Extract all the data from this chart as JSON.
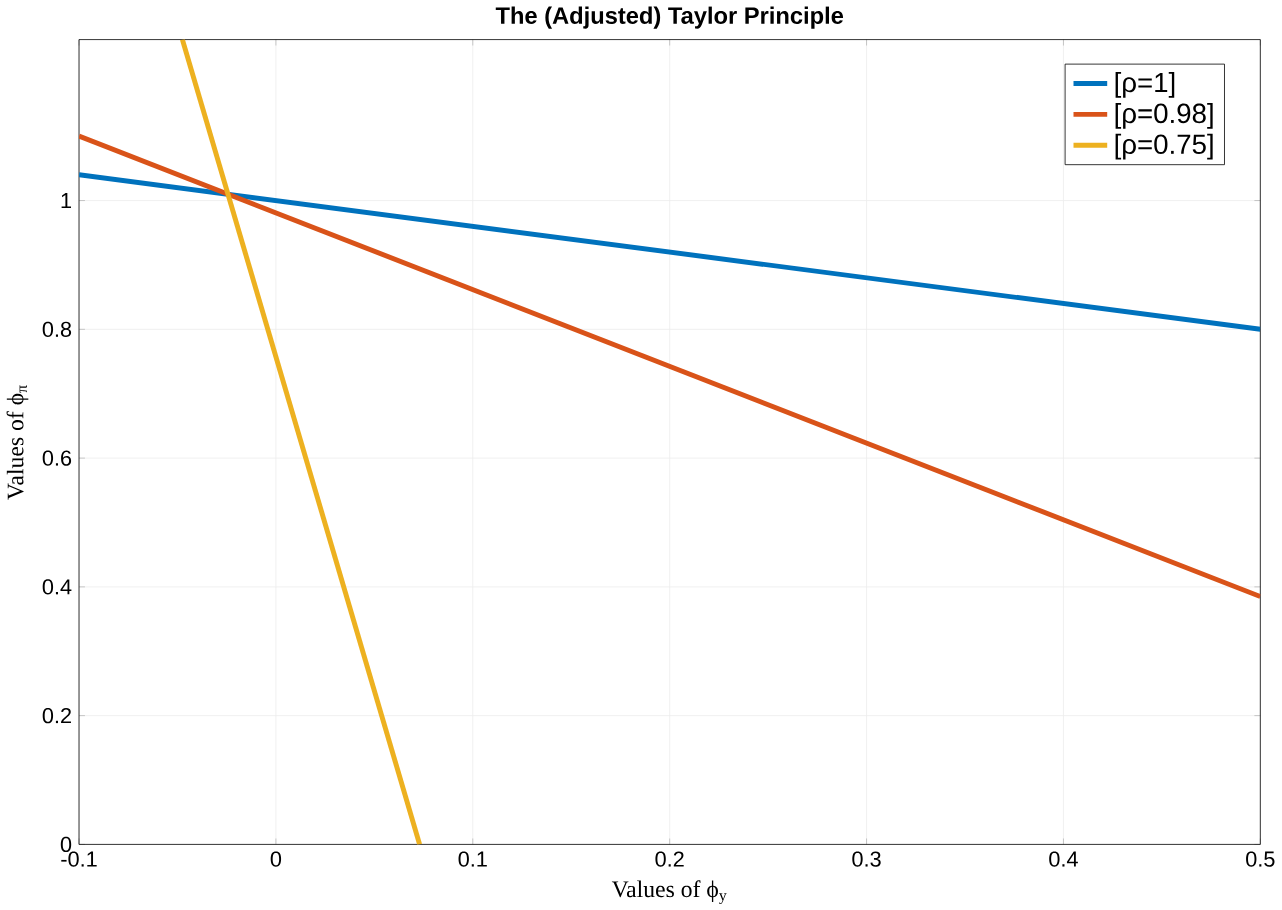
{
  "chart_data": {
    "type": "line",
    "title": "The (Adjusted) Taylor Principle",
    "xlabel": "Values of ϕ$_{y}$",
    "ylabel": "Values of ϕ$_{π}$",
    "xlim": [
      -0.1,
      0.5
    ],
    "ylim": [
      0,
      1.25
    ],
    "xticks": [
      -0.1,
      0,
      0.1,
      0.2,
      0.3,
      0.4,
      0.5
    ],
    "yticks": [
      0,
      0.2,
      0.4,
      0.6,
      0.8,
      1
    ],
    "grid": true,
    "legend": "top right",
    "series": [
      {
        "name": "[ρ=1]",
        "color": "#0072bd",
        "x": [
          -0.1,
          0.5
        ],
        "values": [
          1.04,
          0.8
        ]
      },
      {
        "name": "[ρ=0.98]",
        "color": "#d95319",
        "x": [
          -0.1,
          0.5
        ],
        "values": [
          1.1,
          0.385
        ]
      },
      {
        "name": "[ρ=0.75]",
        "color": "#edb120",
        "x": [
          -0.0475,
          0.073
        ],
        "values": [
          1.25,
          0
        ]
      }
    ]
  }
}
